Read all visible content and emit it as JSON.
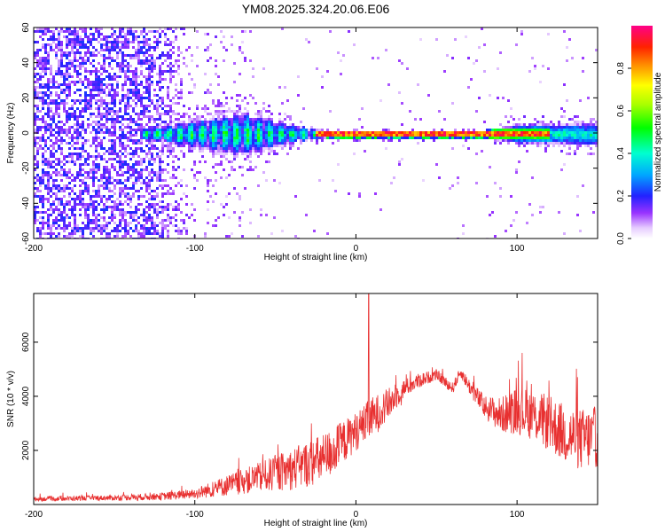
{
  "title": "YM08.2025.324.20.06.E06",
  "chart_data": [
    {
      "type": "heatmap",
      "xlabel": "Height of straight line (km)",
      "ylabel": "Frequency (Hz)",
      "xlim": [
        -200,
        150
      ],
      "ylim": [
        -60,
        60
      ],
      "x_ticks": [
        -200,
        -100,
        0,
        100
      ],
      "y_ticks": [
        -60,
        -40,
        -20,
        0,
        20,
        40,
        60
      ],
      "x_tick_labels": [
        "-200",
        "-100",
        "0",
        "100"
      ],
      "y_tick_labels": [
        "-60",
        "-40",
        "-20",
        "0",
        "20",
        "40",
        "60"
      ],
      "colorbar": {
        "label": "Normalized spectral amplitude",
        "range": [
          0,
          1
        ],
        "ticks": [
          0.0,
          0.2,
          0.4,
          0.6,
          0.8
        ],
        "tick_labels": [
          "0.0",
          "0.2",
          "0.4",
          "0.6",
          "0.8"
        ],
        "colormap": "rainbow (white-violet-blue-cyan-green-yellow-red-magenta)"
      },
      "features": {
        "noise_region_x": [
          -200,
          -95
        ],
        "band_center_hz": 0,
        "band_halfwidth_hz": [
          [
            -130,
            3
          ],
          [
            -100,
            8
          ],
          [
            -70,
            12
          ],
          [
            -40,
            5
          ],
          [
            -20,
            2
          ],
          [
            80,
            2
          ],
          [
            100,
            5
          ],
          [
            150,
            6
          ]
        ],
        "peak_region_x": [
          -25,
          120
        ]
      }
    },
    {
      "type": "line",
      "xlabel": "Height of straight line (km)",
      "ylabel": "SNR (10 * v/v)",
      "xlim": [
        -200,
        150
      ],
      "ylim": [
        0,
        7800
      ],
      "x_ticks": [
        -200,
        -100,
        0,
        100
      ],
      "y_ticks": [
        2000,
        4000,
        6000
      ],
      "x_tick_labels": [
        "-200",
        "-100",
        "0",
        "100"
      ],
      "y_tick_labels": [
        "2000",
        "4000",
        "6000"
      ],
      "color": "#e83030",
      "series_envelope": {
        "name": "SNR",
        "x": [
          -200,
          -150,
          -120,
          -100,
          -80,
          -60,
          -40,
          -20,
          0,
          10,
          20,
          30,
          40,
          50,
          60,
          65,
          70,
          80,
          90,
          100,
          110,
          120,
          130,
          140,
          150
        ],
        "baseline": [
          200,
          250,
          300,
          400,
          700,
          1000,
          1300,
          1700,
          2700,
          3200,
          3700,
          4300,
          4600,
          4800,
          4300,
          4900,
          4400,
          3600,
          3300,
          3500,
          3300,
          3000,
          2600,
          2400,
          2500
        ],
        "amplitude": [
          150,
          180,
          250,
          350,
          700,
          1000,
          1400,
          1700,
          1300,
          1400,
          1100,
          600,
          500,
          350,
          400,
          350,
          500,
          800,
          1200,
          1600,
          1700,
          1900,
          2000,
          2100,
          2100
        ]
      },
      "annotations": {
        "spike_peak": {
          "x": 8,
          "y": 7800
        }
      }
    }
  ]
}
